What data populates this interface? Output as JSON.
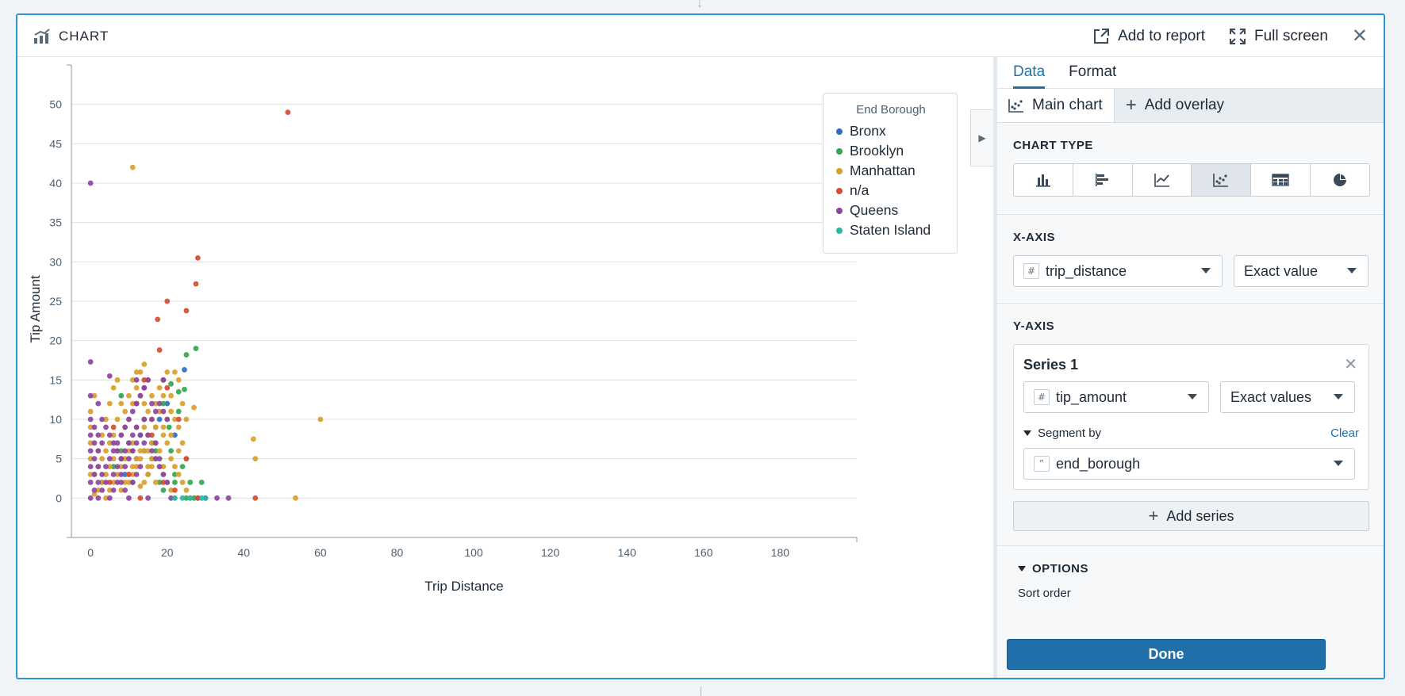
{
  "header": {
    "title": "CHART",
    "add_to_report": "Add to report",
    "full_screen": "Full screen"
  },
  "chart_data": {
    "type": "scatter",
    "xlabel": "Trip Distance",
    "ylabel": "Tip Amount",
    "x_ticks": [
      0,
      20,
      40,
      60,
      80,
      100,
      120,
      140,
      160,
      180
    ],
    "y_ticks": [
      0,
      5,
      10,
      15,
      20,
      25,
      30,
      35,
      40,
      45,
      50
    ],
    "xlim": [
      -5,
      200
    ],
    "ylim": [
      -5,
      55
    ],
    "grid": "horizontal",
    "legend_position": "top-right",
    "legend_title": "End Borough",
    "series": [
      {
        "name": "Bronx",
        "color": "#2e6fc0",
        "points": [
          [
            24.5,
            16.3
          ],
          [
            18,
            10
          ],
          [
            12,
            5
          ],
          [
            16,
            7
          ],
          [
            9,
            3
          ],
          [
            20,
            12
          ],
          [
            22,
            8
          ],
          [
            14,
            6
          ],
          [
            28,
            0
          ]
        ]
      },
      {
        "name": "Brooklyn",
        "color": "#2fa84f",
        "points": [
          [
            27.5,
            19
          ],
          [
            25,
            18.2
          ],
          [
            24.5,
            13.8
          ],
          [
            21,
            14.5
          ],
          [
            19,
            12
          ],
          [
            23,
            11
          ],
          [
            20.5,
            9
          ],
          [
            17,
            6
          ],
          [
            15,
            3
          ],
          [
            18,
            2
          ],
          [
            22,
            2
          ],
          [
            29,
            2
          ],
          [
            24,
            4
          ],
          [
            13,
            8
          ],
          [
            8,
            6
          ],
          [
            6,
            4
          ],
          [
            3,
            2
          ],
          [
            11,
            2
          ],
          [
            16,
            5
          ],
          [
            21,
            6
          ],
          [
            26,
            2
          ],
          [
            19,
            1
          ],
          [
            14,
            10
          ],
          [
            10,
            7
          ],
          [
            23,
            13.5
          ],
          [
            12,
            12
          ],
          [
            8,
            13
          ],
          [
            19,
            15
          ],
          [
            25,
            0
          ],
          [
            27,
            0
          ],
          [
            22,
            3
          ],
          [
            17,
            9
          ]
        ]
      },
      {
        "name": "Manhattan",
        "color": "#d9a12c",
        "points": [
          [
            11,
            42
          ],
          [
            60,
            10
          ],
          [
            42.5,
            7.5
          ],
          [
            43,
            5
          ],
          [
            53.5,
            0
          ],
          [
            27,
            11.5
          ],
          [
            25,
            10
          ],
          [
            24,
            12
          ],
          [
            23,
            15
          ],
          [
            22,
            16
          ],
          [
            21,
            13
          ],
          [
            20,
            10
          ],
          [
            19,
            8
          ],
          [
            18,
            6
          ],
          [
            17,
            5
          ],
          [
            16,
            4
          ],
          [
            15,
            3
          ],
          [
            14,
            2
          ],
          [
            13,
            1.5
          ],
          [
            12,
            14
          ],
          [
            11,
            12
          ],
          [
            10,
            10
          ],
          [
            9,
            9
          ],
          [
            8,
            8
          ],
          [
            7,
            6
          ],
          [
            6,
            5
          ],
          [
            5,
            4
          ],
          [
            4,
            3
          ],
          [
            3,
            2
          ],
          [
            2,
            1
          ],
          [
            1,
            0.5
          ],
          [
            13,
            16
          ],
          [
            14,
            17
          ],
          [
            15,
            15
          ],
          [
            16,
            13
          ],
          [
            17,
            12
          ],
          [
            18,
            11
          ],
          [
            19,
            9
          ],
          [
            20,
            7
          ],
          [
            21,
            5
          ],
          [
            22,
            4
          ],
          [
            23,
            3
          ],
          [
            24,
            2
          ],
          [
            25,
            1
          ],
          [
            26,
            0
          ],
          [
            12,
            9
          ],
          [
            11,
            7
          ],
          [
            10,
            6
          ],
          [
            9,
            5
          ],
          [
            8,
            4
          ],
          [
            7,
            3
          ],
          [
            6,
            2
          ],
          [
            5,
            1
          ],
          [
            4,
            0
          ],
          [
            0,
            3
          ],
          [
            0,
            5
          ],
          [
            0,
            7
          ],
          [
            0,
            9
          ],
          [
            0,
            11
          ],
          [
            1,
            13
          ],
          [
            2,
            6
          ],
          [
            3,
            8
          ],
          [
            4,
            10
          ],
          [
            5,
            12
          ],
          [
            6,
            14
          ],
          [
            7,
            15
          ],
          [
            8,
            12
          ],
          [
            9,
            11
          ],
          [
            10,
            13
          ],
          [
            11,
            15
          ],
          [
            12,
            16
          ],
          [
            13,
            13
          ],
          [
            14,
            12
          ],
          [
            15,
            11
          ],
          [
            16,
            10
          ],
          [
            17,
            9
          ],
          [
            18,
            14
          ],
          [
            19,
            13
          ],
          [
            20,
            16
          ],
          [
            21,
            11
          ],
          [
            22,
            10
          ],
          [
            23,
            9
          ],
          [
            24,
            7
          ],
          [
            25,
            5
          ],
          [
            14,
            9
          ],
          [
            15,
            8
          ],
          [
            16,
            7
          ],
          [
            17,
            7
          ],
          [
            18,
            4
          ],
          [
            19,
            3
          ],
          [
            20,
            2
          ],
          [
            21,
            1
          ],
          [
            22,
            0
          ],
          [
            10,
            2
          ],
          [
            11,
            3
          ],
          [
            12,
            4
          ],
          [
            13,
            5
          ],
          [
            14,
            6
          ],
          [
            15,
            6
          ],
          [
            16,
            5
          ],
          [
            8,
            1
          ],
          [
            9,
            2
          ],
          [
            10,
            3
          ],
          [
            11,
            4
          ],
          [
            12,
            5
          ],
          [
            13,
            6
          ],
          [
            15,
            4
          ],
          [
            17,
            2
          ],
          [
            19,
            4
          ],
          [
            21,
            8
          ],
          [
            23,
            6
          ],
          [
            7,
            10
          ],
          [
            6,
            8
          ],
          [
            5,
            7
          ],
          [
            4,
            6
          ],
          [
            3,
            5
          ],
          [
            2,
            4
          ],
          [
            1,
            3
          ]
        ]
      },
      {
        "name": "n/a",
        "color": "#d64b32",
        "points": [
          [
            51.5,
            49
          ],
          [
            28,
            30.5
          ],
          [
            27.5,
            27.2
          ],
          [
            25,
            23.8
          ],
          [
            20,
            25
          ],
          [
            17.5,
            22.7
          ],
          [
            18,
            18.8
          ],
          [
            43,
            0
          ],
          [
            23,
            10
          ],
          [
            25,
            5
          ],
          [
            20,
            14
          ],
          [
            14,
            15
          ],
          [
            12,
            12
          ],
          [
            16,
            8
          ],
          [
            10,
            3
          ],
          [
            19,
            2
          ],
          [
            22,
            1
          ],
          [
            8,
            5
          ],
          [
            5,
            2
          ],
          [
            6,
            9
          ],
          [
            11,
            6
          ],
          [
            13,
            0
          ],
          [
            28,
            0
          ]
        ]
      },
      {
        "name": "Queens",
        "color": "#8e44a0",
        "points": [
          [
            0,
            40
          ],
          [
            0,
            17.3
          ],
          [
            0,
            13
          ],
          [
            0,
            10
          ],
          [
            0,
            8
          ],
          [
            0,
            6
          ],
          [
            0,
            4
          ],
          [
            0,
            2
          ],
          [
            0,
            0
          ],
          [
            1,
            1
          ],
          [
            2,
            2
          ],
          [
            3,
            3
          ],
          [
            4,
            4
          ],
          [
            5,
            5
          ],
          [
            6,
            6
          ],
          [
            7,
            7
          ],
          [
            8,
            8
          ],
          [
            9,
            9
          ],
          [
            10,
            10
          ],
          [
            11,
            11
          ],
          [
            12,
            12
          ],
          [
            13,
            13
          ],
          [
            14,
            14
          ],
          [
            15,
            15
          ],
          [
            16,
            10
          ],
          [
            17,
            7
          ],
          [
            18,
            5
          ],
          [
            19,
            3
          ],
          [
            20,
            2
          ],
          [
            21,
            0
          ],
          [
            15,
            0
          ],
          [
            10,
            0
          ],
          [
            5,
            0
          ],
          [
            2,
            0
          ],
          [
            30,
            0
          ],
          [
            36,
            0
          ],
          [
            33,
            0
          ],
          [
            5,
            15.5
          ],
          [
            2,
            12
          ],
          [
            3,
            10
          ],
          [
            4,
            9
          ],
          [
            5,
            8
          ],
          [
            6,
            7
          ],
          [
            7,
            6
          ],
          [
            8,
            5
          ],
          [
            9,
            4
          ],
          [
            10,
            5
          ],
          [
            11,
            6
          ],
          [
            12,
            7
          ],
          [
            13,
            8
          ],
          [
            14,
            7
          ],
          [
            12,
            3
          ],
          [
            13,
            4
          ],
          [
            11,
            2
          ],
          [
            9,
            1
          ],
          [
            7,
            2
          ],
          [
            6,
            3
          ],
          [
            4,
            2
          ],
          [
            3,
            1
          ],
          [
            1,
            5
          ],
          [
            2,
            6
          ],
          [
            3,
            7
          ],
          [
            1,
            3
          ],
          [
            2,
            4
          ],
          [
            8,
            3
          ],
          [
            9,
            6
          ],
          [
            10,
            7
          ],
          [
            11,
            8
          ],
          [
            12,
            9
          ],
          [
            14,
            10
          ],
          [
            16,
            12
          ],
          [
            17,
            11
          ],
          [
            18,
            12
          ],
          [
            19,
            11
          ],
          [
            20,
            10
          ],
          [
            15,
            8
          ],
          [
            16,
            6
          ],
          [
            17,
            5
          ],
          [
            18,
            4
          ],
          [
            8,
            2
          ],
          [
            7,
            4
          ],
          [
            6,
            1
          ],
          [
            1,
            7
          ],
          [
            1,
            9
          ],
          [
            2,
            8
          ],
          [
            19,
            15
          ],
          [
            14,
            14
          ],
          [
            12,
            15
          ]
        ]
      },
      {
        "name": "Staten Island",
        "color": "#2bb5a8",
        "points": [
          [
            29,
            0
          ],
          [
            30,
            0
          ],
          [
            22,
            0
          ],
          [
            26,
            0
          ],
          [
            24,
            0
          ]
        ]
      }
    ]
  },
  "panel": {
    "tabs": [
      "Data",
      "Format"
    ],
    "subtabs": {
      "main": "Main chart",
      "overlay": "Add overlay"
    },
    "chart_type_label": "CHART TYPE",
    "chart_type_icons": [
      "bar-chart-icon",
      "horizontal-bar-icon",
      "line-chart-icon",
      "scatter-chart-icon",
      "heatmap-icon",
      "pie-chart-icon"
    ],
    "selected_chart_type": "scatter",
    "x_axis": {
      "label": "X-AXIS",
      "field": "trip_distance",
      "mode": "Exact value"
    },
    "y_axis": {
      "label": "Y-AXIS",
      "series_title": "Series 1",
      "field": "tip_amount",
      "mode": "Exact values",
      "segment_label": "Segment by",
      "clear": "Clear",
      "segment_field": "end_borough"
    },
    "add_series": "Add series",
    "options_label": "OPTIONS",
    "sort_order_label": "Sort order",
    "done": "Done"
  }
}
